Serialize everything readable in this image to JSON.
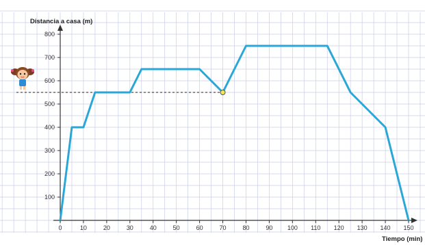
{
  "chart_data": {
    "type": "line",
    "title": "",
    "xlabel": "Tiempo (min)",
    "ylabel": "Distancia a casa (m)",
    "xlim": [
      0,
      150
    ],
    "ylim": [
      0,
      800
    ],
    "x_ticks": [
      0,
      10,
      20,
      30,
      40,
      50,
      60,
      70,
      80,
      90,
      100,
      110,
      120,
      130,
      140,
      150
    ],
    "y_ticks": [
      100,
      200,
      300,
      400,
      500,
      600,
      700,
      800
    ],
    "grid": true,
    "line_color": "#2aa7d6",
    "series": [
      {
        "x": [
          0,
          5,
          10,
          15,
          30,
          35,
          60,
          70,
          80,
          115,
          125,
          140,
          150
        ],
        "y": [
          0,
          400,
          400,
          550,
          550,
          650,
          650,
          550,
          750,
          750,
          550,
          400,
          0
        ]
      }
    ],
    "annotations": {
      "highlight_point": {
        "x": 70,
        "y": 550,
        "color": "#f5e84a"
      },
      "reference_line_y": 550,
      "figure_icon": "girl-icon"
    }
  }
}
